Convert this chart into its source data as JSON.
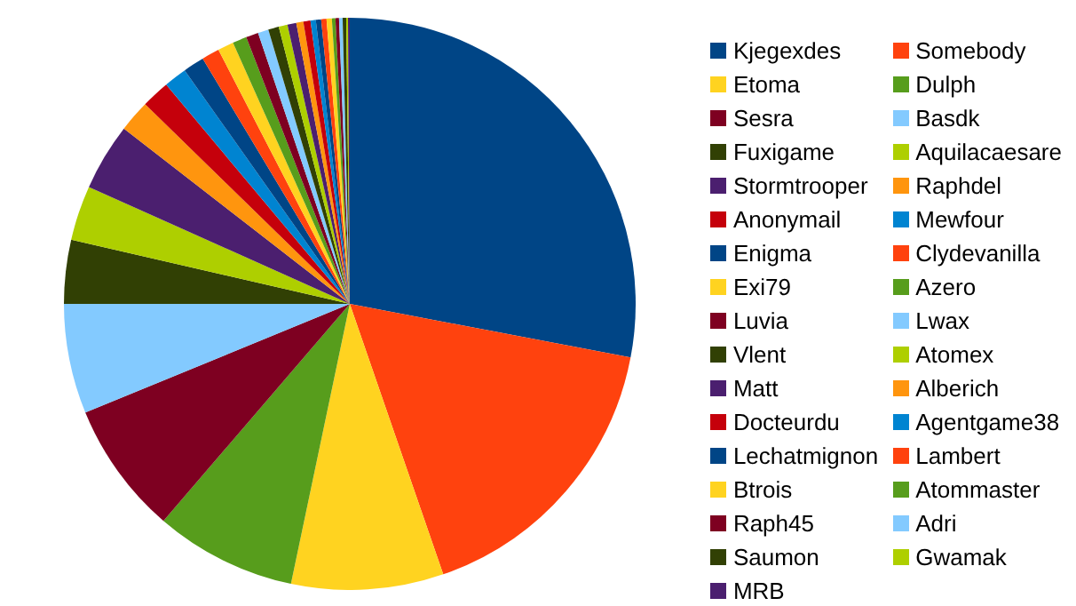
{
  "chart_data": {
    "type": "pie",
    "legend": "right",
    "categories": [
      "Kjegexdes",
      "Somebody",
      "Etoma",
      "Dulph",
      "Sesra",
      "Basdk",
      "Fuxigame",
      "Aquilacaesare",
      "Stormtrooper",
      "Raphdel",
      "Anonymail",
      "Mewfour",
      "Enigma",
      "Clydevanilla",
      "Exi79",
      "Azero",
      "Luvia",
      "Lwax",
      "Vlent",
      "Atomex",
      "Matt",
      "Alberich",
      "Docteurdu",
      "Agentgame38",
      "Lechatmignon",
      "Lambert",
      "Btrois",
      "Atommaster",
      "Raph45",
      "Adri",
      "Saumon",
      "Gwamak",
      "MRB"
    ],
    "values": [
      28,
      16.7,
      8.6,
      8,
      7.5,
      6.2,
      3.6,
      3.1,
      3.8,
      1.8,
      1.6,
      1.3,
      1.2,
      1,
      0.9,
      0.8,
      0.7,
      0.6,
      0.6,
      0.5,
      0.5,
      0.4,
      0.4,
      0.3,
      0.3,
      0.3,
      0.3,
      0.2,
      0.2,
      0.2,
      0.2,
      0.1,
      0.1
    ],
    "colors": [
      "#004586",
      "#ff420e",
      "#ffd320",
      "#579d1c",
      "#7e0021",
      "#83caff",
      "#314004",
      "#aecf00",
      "#4b1f6f",
      "#ff950e",
      "#c5000b",
      "#0084d1",
      "#004586",
      "#ff420e",
      "#ffd320",
      "#579d1c",
      "#7e0021",
      "#83caff",
      "#314004",
      "#aecf00",
      "#4b1f6f",
      "#ff950e",
      "#c5000b",
      "#0084d1",
      "#004586",
      "#ff420e",
      "#ffd320",
      "#579d1c",
      "#7e0021",
      "#83caff",
      "#314004",
      "#aecf00",
      "#4b1f6f"
    ]
  }
}
